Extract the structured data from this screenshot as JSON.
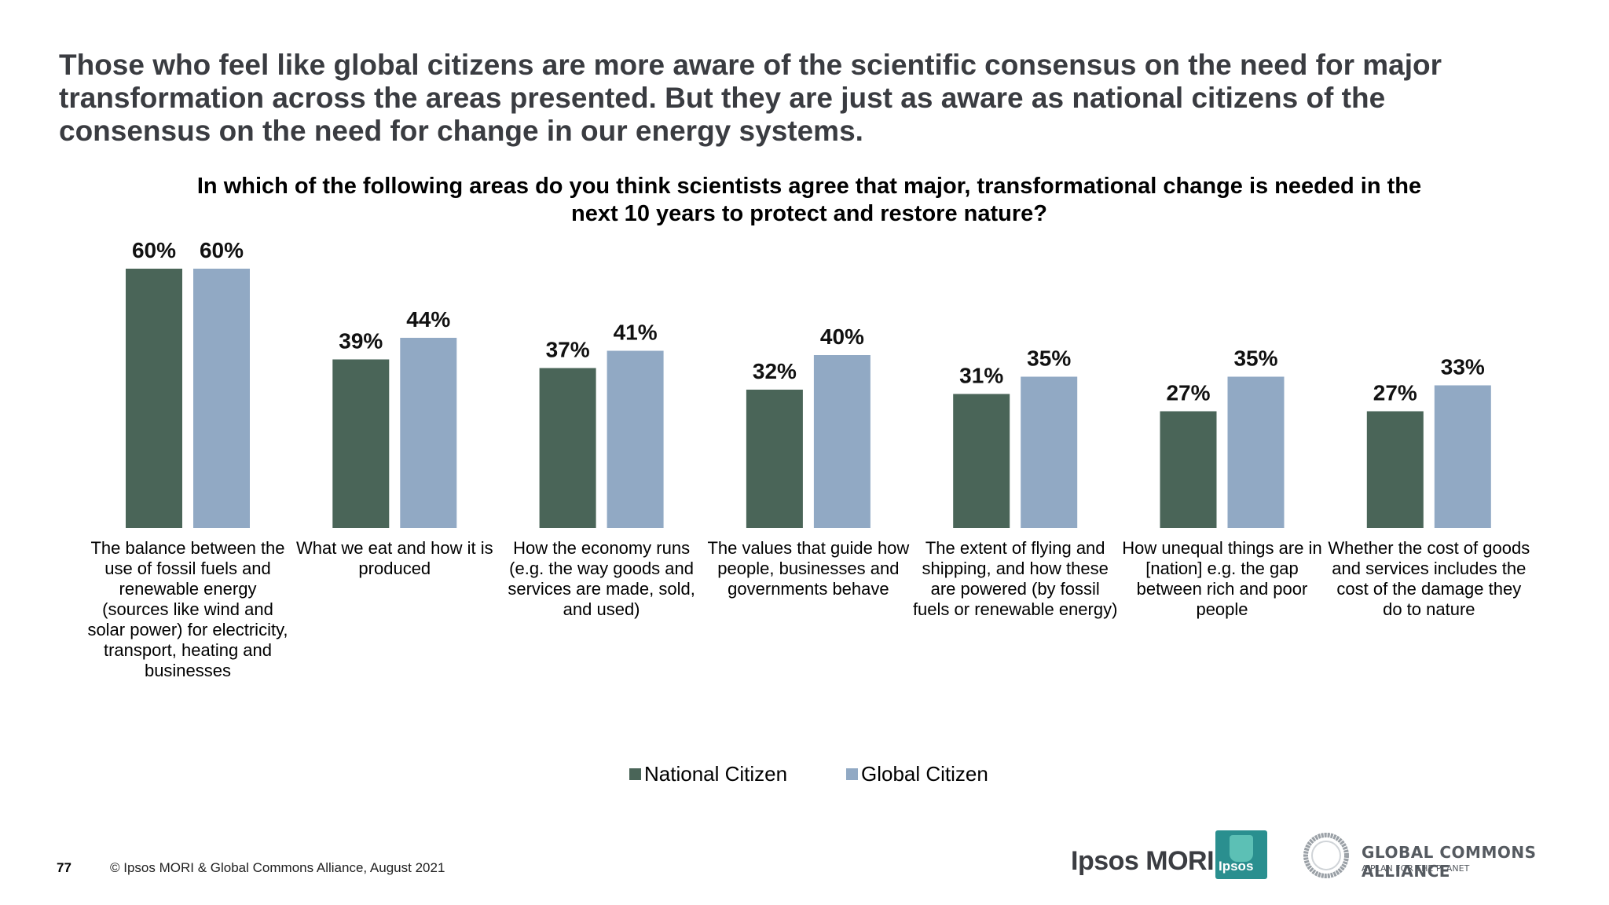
{
  "headline": "Those who feel like global citizens are more aware of the scientific consensus on the need for major transformation across the areas presented. But they are just as aware as national citizens of the consensus on the need for change in our energy systems.",
  "footer": {
    "page_number": "77",
    "copyright": "© Ipsos MORI & Global Commons Alliance, August 2021"
  },
  "logos": {
    "ipsos_mori": "Ipsos MORI",
    "ipsos_badge": "Ipsos",
    "gca_title": "GLOBAL COMMONS ALLIANCE",
    "gca_tagline": "A PLAN FOR THE PLANET"
  },
  "colors": {
    "national": "#4a6558",
    "global": "#91a9c4"
  },
  "chart_data": {
    "type": "bar",
    "title": "In which of the following areas do you think scientists agree that major, transformational change is needed in the next 10 years to protect and restore nature?",
    "xlabel": "",
    "ylabel": "",
    "ylim": [
      0,
      60
    ],
    "value_suffix": "%",
    "legend_position": "bottom",
    "categories": [
      "The balance between the use of fossil fuels and renewable energy (sources like wind and solar power) for electricity, transport, heating and businesses",
      "What we eat and how it is produced",
      "How the economy runs (e.g. the way goods and services are made, sold, and used)",
      "The values that guide how people, businesses and governments behave",
      "The extent of flying and shipping, and how these are powered (by fossil fuels or renewable energy)",
      "How unequal things are in [nation] e.g. the gap between rich and poor people",
      "Whether the cost of goods and services includes the cost of the damage they do to nature"
    ],
    "series": [
      {
        "name": "National Citizen",
        "values": [
          60,
          39,
          37,
          32,
          31,
          27,
          27
        ]
      },
      {
        "name": "Global Citizen",
        "values": [
          60,
          44,
          41,
          40,
          35,
          35,
          33
        ]
      }
    ]
  }
}
